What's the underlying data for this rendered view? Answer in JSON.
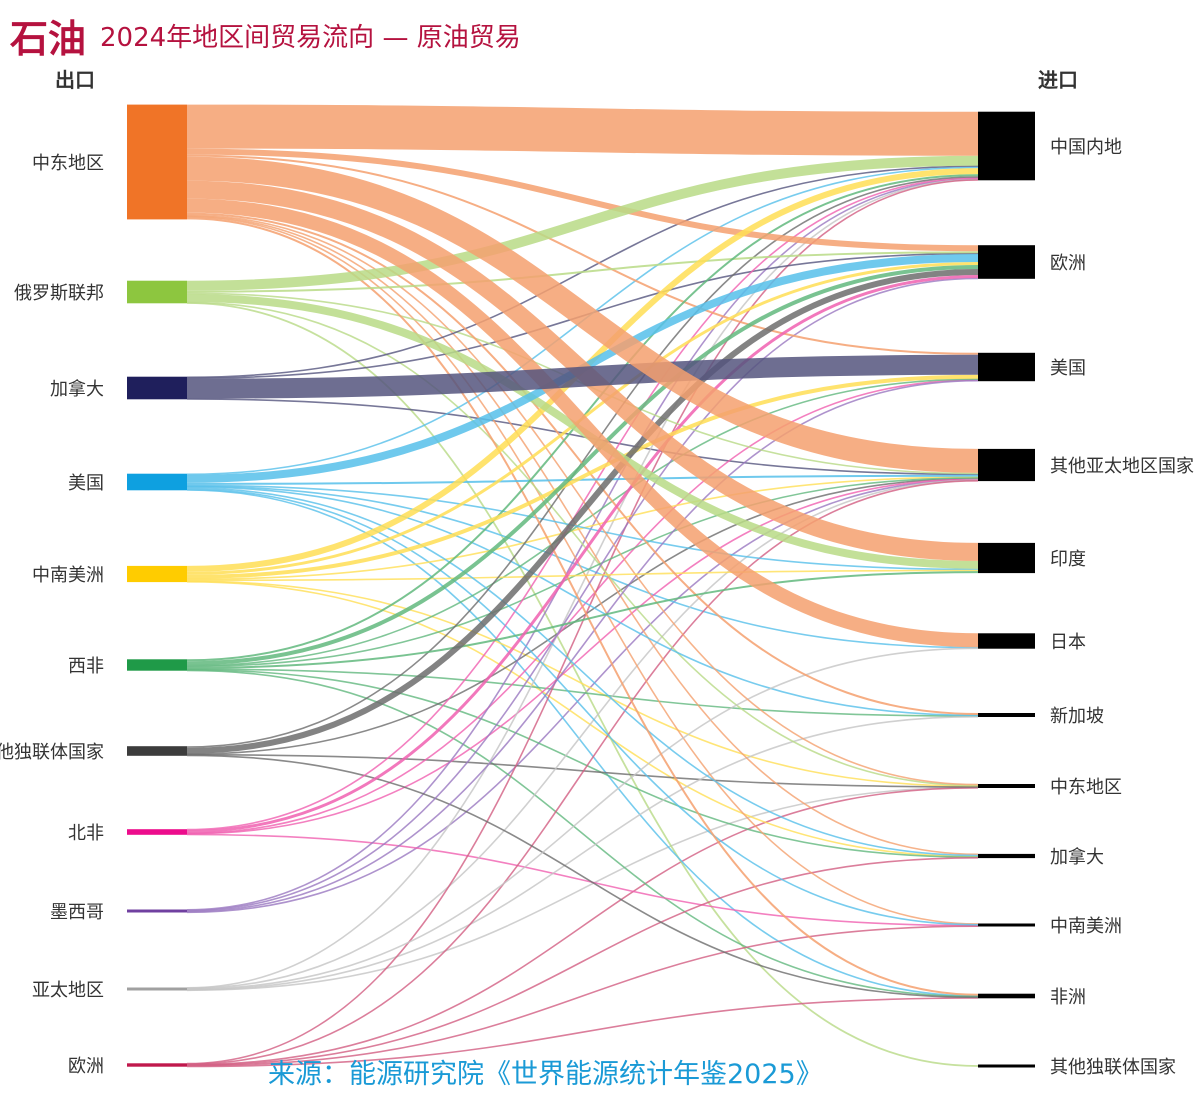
{
  "header": {
    "title": "石油",
    "subtitle": "2024年地区间贸易流向 — 原油贸易"
  },
  "exports_label": "出口",
  "imports_label": "进口",
  "source": "来源：能源研究院《世界能源统计年鉴2025》",
  "chart_data": {
    "type": "sankey",
    "title": "石油 2024年地区间贸易流向 — 原油贸易",
    "unit": "approximate relative flow volume",
    "sources": [
      {
        "id": "me",
        "name": "中东地区",
        "color": "#f07427",
        "flow_color": "#f4a06e"
      },
      {
        "id": "ru",
        "name": "俄罗斯联邦",
        "color": "#8dc63f",
        "flow_color": "#b8da86"
      },
      {
        "id": "ca",
        "name": "加拿大",
        "color": "#1f1f5c",
        "flow_color": "#55557e"
      },
      {
        "id": "us",
        "name": "美国",
        "color": "#0ea0e0",
        "flow_color": "#56bfea"
      },
      {
        "id": "csa",
        "name": "中南美洲",
        "color": "#ffcc00",
        "flow_color": "#ffde55"
      },
      {
        "id": "waf",
        "name": "西非",
        "color": "#1f9a48",
        "flow_color": "#62b87e"
      },
      {
        "id": "cis",
        "name": "其他独联体国家",
        "color": "#3c3c3c",
        "flow_color": "#6d6d6d"
      },
      {
        "id": "naf",
        "name": "北非",
        "color": "#ec0c8c",
        "flow_color": "#f060b0"
      },
      {
        "id": "mx",
        "name": "墨西哥",
        "color": "#7040a0",
        "flow_color": "#9a78c0"
      },
      {
        "id": "ap",
        "name": "亚太地区",
        "color": "#a0a0a0",
        "flow_color": "#c4c4c4"
      },
      {
        "id": "eu",
        "name": "欧洲",
        "color": "#c0184c",
        "flow_color": "#d25e82"
      }
    ],
    "targets": [
      {
        "id": "cn",
        "name": "中国内地"
      },
      {
        "id": "eur",
        "name": "欧洲"
      },
      {
        "id": "usa",
        "name": "美国"
      },
      {
        "id": "oap",
        "name": "其他亚太地区国家"
      },
      {
        "id": "in",
        "name": "印度"
      },
      {
        "id": "jp",
        "name": "日本"
      },
      {
        "id": "sg",
        "name": "新加坡"
      },
      {
        "id": "mer",
        "name": "中东地区"
      },
      {
        "id": "can",
        "name": "加拿大"
      },
      {
        "id": "csar",
        "name": "中南美洲"
      },
      {
        "id": "afr",
        "name": "非洲"
      },
      {
        "id": "ocis",
        "name": "其他独联体国家"
      }
    ],
    "flows": [
      {
        "from": "me",
        "to": "cn",
        "value": 22
      },
      {
        "from": "me",
        "to": "oap",
        "value": 12
      },
      {
        "from": "me",
        "to": "in",
        "value": 9
      },
      {
        "from": "me",
        "to": "jp",
        "value": 7
      },
      {
        "from": "me",
        "to": "eur",
        "value": 3
      },
      {
        "from": "me",
        "to": "usa",
        "value": 1
      },
      {
        "from": "me",
        "to": "sg",
        "value": 1
      },
      {
        "from": "me",
        "to": "afr",
        "value": 1
      },
      {
        "from": "me",
        "to": "mer",
        "value": 0.6
      },
      {
        "from": "me",
        "to": "can",
        "value": 0.4
      },
      {
        "from": "me",
        "to": "csar",
        "value": 0.4
      },
      {
        "from": "ru",
        "to": "cn",
        "value": 5
      },
      {
        "from": "ru",
        "to": "in",
        "value": 4
      },
      {
        "from": "ru",
        "to": "eur",
        "value": 1
      },
      {
        "from": "ru",
        "to": "oap",
        "value": 0.6
      },
      {
        "from": "ru",
        "to": "mer",
        "value": 0.4
      },
      {
        "from": "ru",
        "to": "ocis",
        "value": 0.3
      },
      {
        "from": "ca",
        "to": "usa",
        "value": 10
      },
      {
        "from": "ca",
        "to": "cn",
        "value": 0.6
      },
      {
        "from": "ca",
        "to": "eur",
        "value": 0.4
      },
      {
        "from": "ca",
        "to": "oap",
        "value": 0.3
      },
      {
        "from": "us",
        "to": "eur",
        "value": 4
      },
      {
        "from": "us",
        "to": "cn",
        "value": 0.6
      },
      {
        "from": "us",
        "to": "oap",
        "value": 1
      },
      {
        "from": "us",
        "to": "in",
        "value": 0.5
      },
      {
        "from": "us",
        "to": "can",
        "value": 0.8
      },
      {
        "from": "us",
        "to": "sg",
        "value": 0.4
      },
      {
        "from": "us",
        "to": "jp",
        "value": 0.3
      },
      {
        "from": "us",
        "to": "csar",
        "value": 0.4
      },
      {
        "from": "us",
        "to": "afr",
        "value": 0.3
      },
      {
        "from": "csa",
        "to": "cn",
        "value": 3
      },
      {
        "from": "csa",
        "to": "usa",
        "value": 2
      },
      {
        "from": "csa",
        "to": "eur",
        "value": 1.5
      },
      {
        "from": "csa",
        "to": "in",
        "value": 0.6
      },
      {
        "from": "csa",
        "to": "oap",
        "value": 0.4
      },
      {
        "from": "csa",
        "to": "can",
        "value": 0.3
      },
      {
        "from": "csa",
        "to": "mer",
        "value": 0.3
      },
      {
        "from": "waf",
        "to": "eur",
        "value": 2
      },
      {
        "from": "waf",
        "to": "cn",
        "value": 1
      },
      {
        "from": "waf",
        "to": "in",
        "value": 1
      },
      {
        "from": "waf",
        "to": "oap",
        "value": 0.4
      },
      {
        "from": "waf",
        "to": "usa",
        "value": 0.4
      },
      {
        "from": "waf",
        "to": "sg",
        "value": 0.3
      },
      {
        "from": "waf",
        "to": "can",
        "value": 0.3
      },
      {
        "from": "waf",
        "to": "afr",
        "value": 0.3
      },
      {
        "from": "cis",
        "to": "eur",
        "value": 3
      },
      {
        "from": "cis",
        "to": "cn",
        "value": 0.8
      },
      {
        "from": "cis",
        "to": "afr",
        "value": 0.4
      },
      {
        "from": "cis",
        "to": "mer",
        "value": 0.3
      },
      {
        "from": "cis",
        "to": "oap",
        "value": 0.3
      },
      {
        "from": "naf",
        "to": "eur",
        "value": 1.5
      },
      {
        "from": "naf",
        "to": "cn",
        "value": 0.4
      },
      {
        "from": "naf",
        "to": "usa",
        "value": 0.3
      },
      {
        "from": "naf",
        "to": "oap",
        "value": 0.3
      },
      {
        "from": "naf",
        "to": "csar",
        "value": 0.3
      },
      {
        "from": "mx",
        "to": "usa",
        "value": 0.5
      },
      {
        "from": "mx",
        "to": "eur",
        "value": 0.4
      },
      {
        "from": "mx",
        "to": "cn",
        "value": 0.3
      },
      {
        "from": "mx",
        "to": "oap",
        "value": 0.2
      },
      {
        "from": "ap",
        "to": "jp",
        "value": 0.4
      },
      {
        "from": "ap",
        "to": "sg",
        "value": 0.3
      },
      {
        "from": "ap",
        "to": "cn",
        "value": 0.3
      },
      {
        "from": "ap",
        "to": "oap",
        "value": 0.3
      },
      {
        "from": "ap",
        "to": "mer",
        "value": 0.2
      },
      {
        "from": "eu",
        "to": "cn",
        "value": 0.3
      },
      {
        "from": "eu",
        "to": "oap",
        "value": 0.3
      },
      {
        "from": "eu",
        "to": "csar",
        "value": 0.3
      },
      {
        "from": "eu",
        "to": "afr",
        "value": 0.3
      },
      {
        "from": "eu",
        "to": "can",
        "value": 0.3
      },
      {
        "from": "eu",
        "to": "mer",
        "value": 0.2
      }
    ]
  }
}
